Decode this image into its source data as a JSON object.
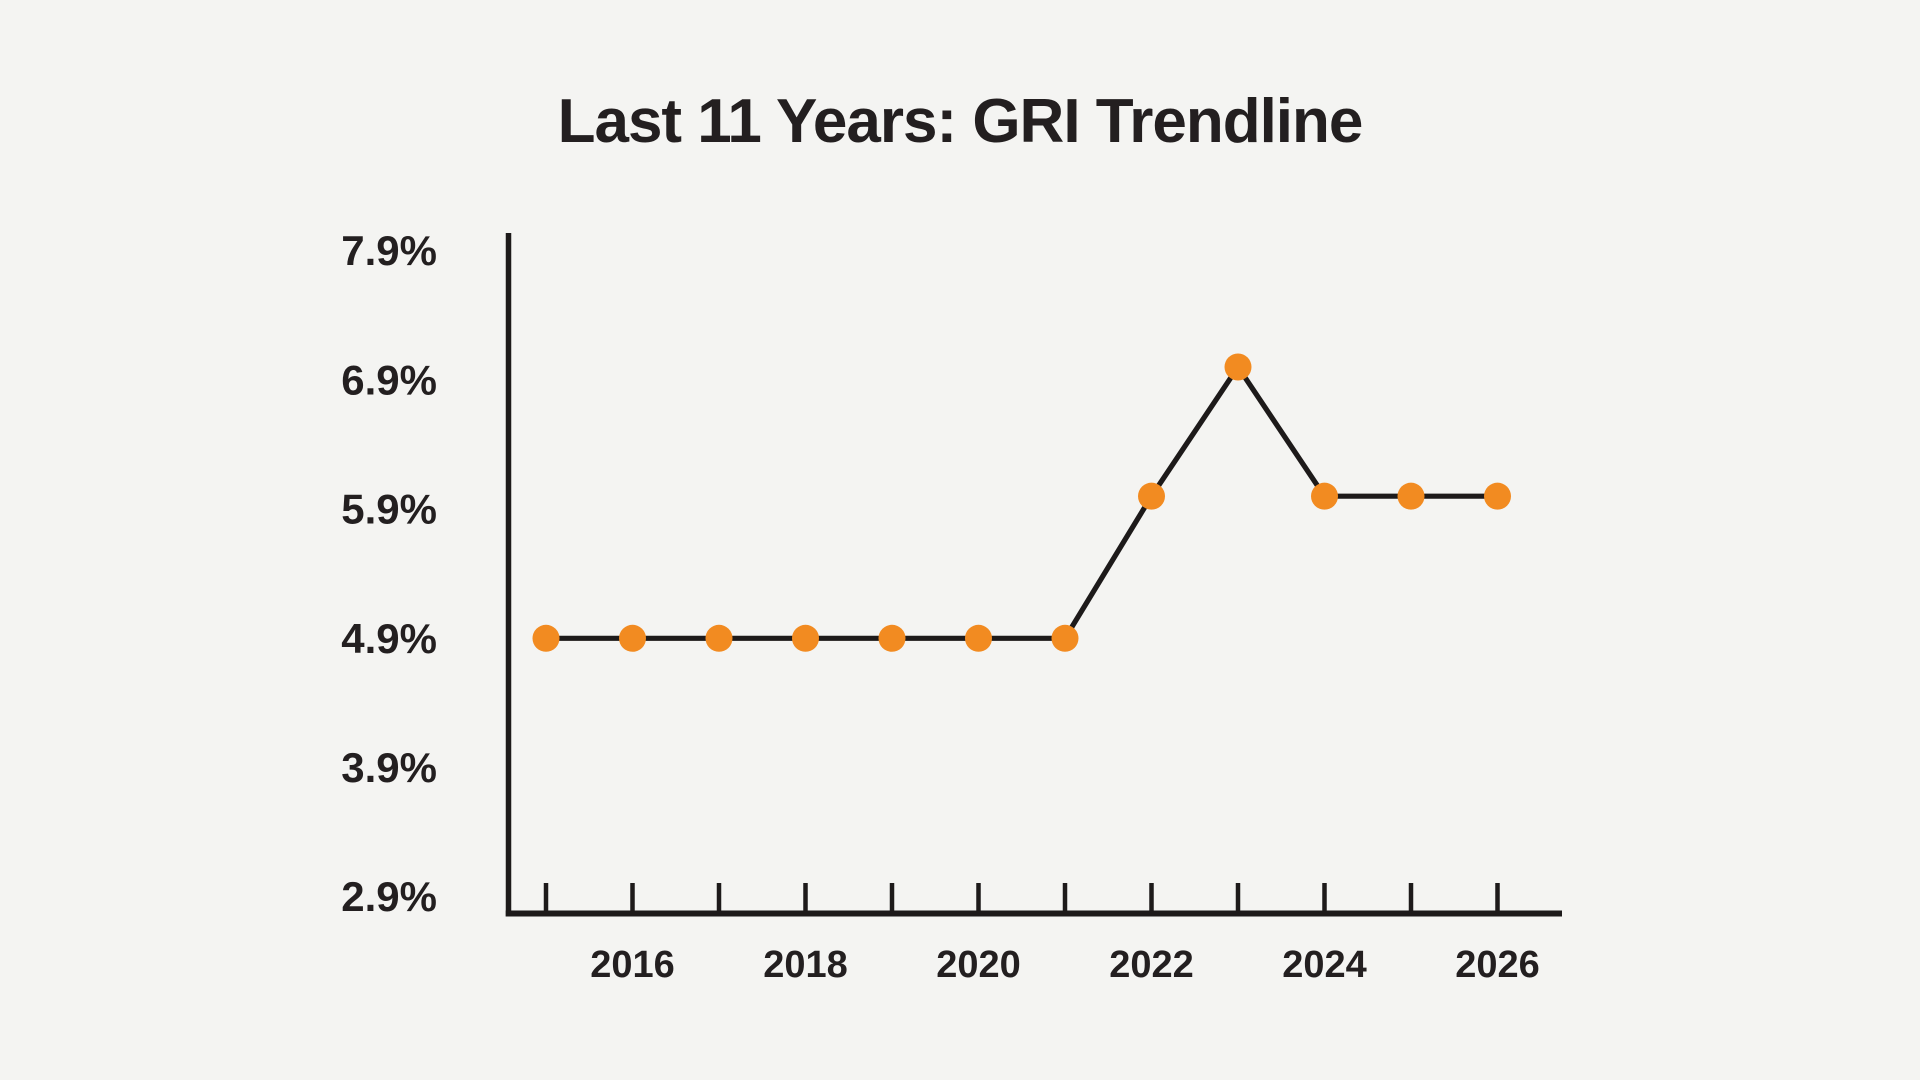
{
  "page": {
    "background_color": "#f4f4f2",
    "ink_color": "#231f20",
    "accent_color": "#f28b21"
  },
  "chart_data": {
    "type": "line",
    "title": "Last 11 Years: GRI Trendline",
    "xlabel": "",
    "ylabel": "",
    "x": [
      2015,
      2016,
      2017,
      2018,
      2019,
      2020,
      2021,
      2022,
      2023,
      2024,
      2025,
      2026
    ],
    "series": [
      {
        "name": "GRI",
        "values": [
          4.9,
          4.9,
          4.9,
          4.9,
          4.9,
          4.9,
          4.9,
          6.0,
          7.0,
          6.0,
          6.0,
          6.0
        ]
      }
    ],
    "y_tick_labels": [
      "7.9%",
      "6.9%",
      "5.9%",
      "4.9%",
      "3.9%",
      "2.9%"
    ],
    "y_tick_values": [
      7.9,
      6.9,
      5.9,
      4.9,
      3.9,
      2.9
    ],
    "x_tick_labels": [
      "2016",
      "2018",
      "2020",
      "2022",
      "2024",
      "2026"
    ],
    "x_labeled_years": [
      2016,
      2018,
      2020,
      2022,
      2024,
      2026
    ],
    "xlim": [
      2015,
      2026
    ],
    "ylim": [
      2.9,
      7.9
    ],
    "grid": false,
    "legend_position": "none",
    "line_color": "#1d1a1a",
    "marker_color": "#f28b21",
    "axis_color": "#1d1a1a"
  }
}
